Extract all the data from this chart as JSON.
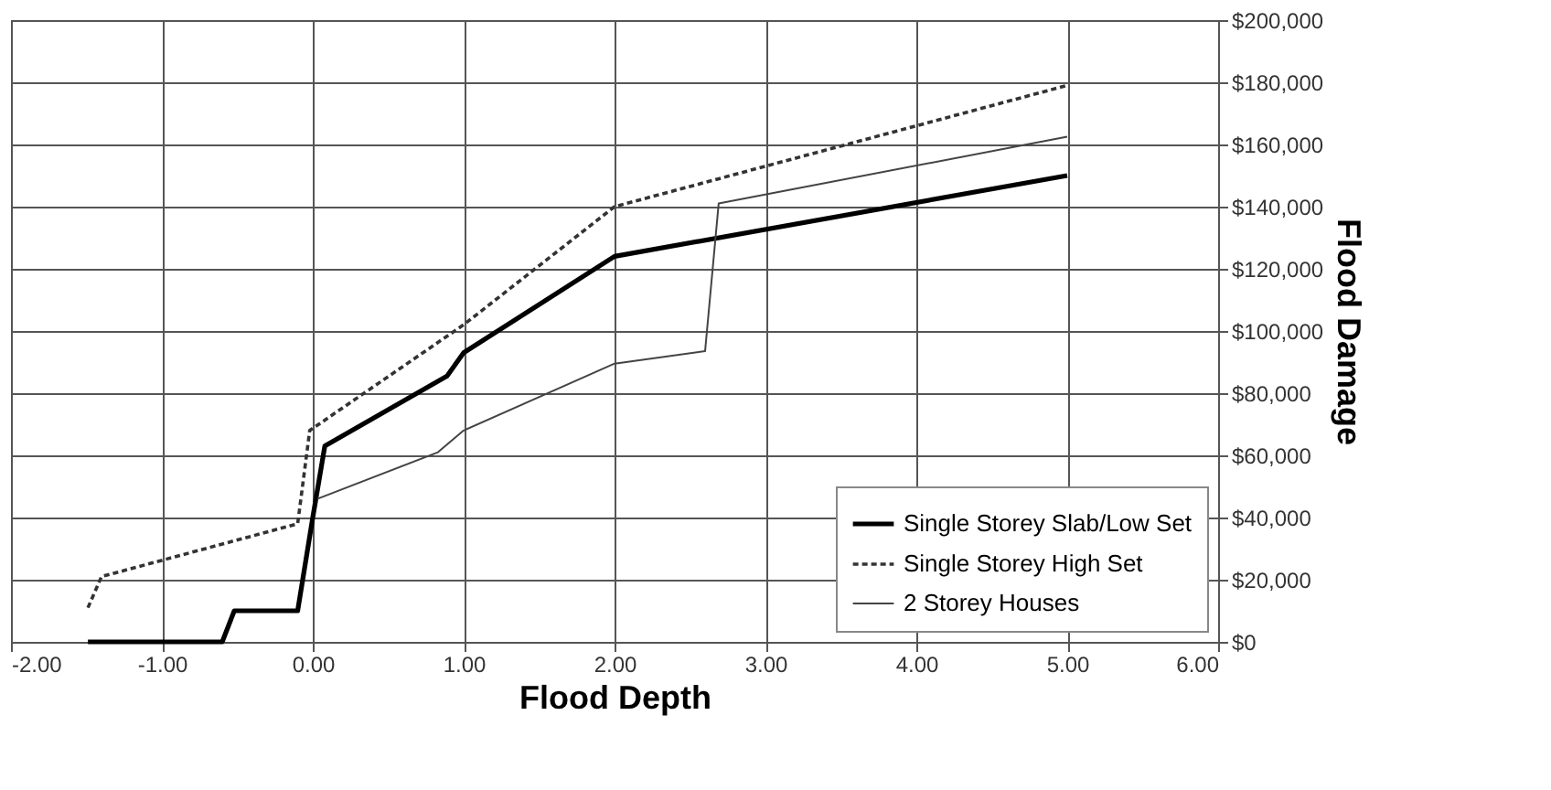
{
  "chart_data": {
    "type": "line",
    "xlabel": "Flood Depth",
    "ylabel": "Flood Damage",
    "xlim": [
      -2,
      6
    ],
    "ylim": [
      0,
      200000
    ],
    "xticks": [
      {
        "value": -2,
        "label": "-2.00"
      },
      {
        "value": -1,
        "label": "-1.00"
      },
      {
        "value": 0,
        "label": "0.00"
      },
      {
        "value": 1,
        "label": "1.00"
      },
      {
        "value": 2,
        "label": "2.00"
      },
      {
        "value": 3,
        "label": "3.00"
      },
      {
        "value": 4,
        "label": "4.00"
      },
      {
        "value": 5,
        "label": "5.00"
      },
      {
        "value": 6,
        "label": "6.00"
      }
    ],
    "yticks": [
      {
        "value": 0,
        "label": "$0"
      },
      {
        "value": 20000,
        "label": "$20,000"
      },
      {
        "value": 40000,
        "label": "$40,000"
      },
      {
        "value": 60000,
        "label": "$60,000"
      },
      {
        "value": 80000,
        "label": "$80,000"
      },
      {
        "value": 100000,
        "label": "$100,000"
      },
      {
        "value": 120000,
        "label": "$120,000"
      },
      {
        "value": 140000,
        "label": "$140,000"
      },
      {
        "value": 160000,
        "label": "$160,000"
      },
      {
        "value": 180000,
        "label": "$180,000"
      },
      {
        "value": 200000,
        "label": "$200,000"
      }
    ],
    "grid": true,
    "legend": "bottom right",
    "marker": "none",
    "series": [
      {
        "name": "Single Storey Slab/Low Set",
        "color": "#000000",
        "line_style": "solid",
        "x": [
          -1.49,
          -0.6,
          -0.52,
          -0.1,
          0.0,
          0.08,
          0.89,
          1.0,
          2.0,
          5.0
        ],
        "values": [
          0,
          0,
          10000,
          10000,
          40000,
          63000,
          85500,
          93000,
          124000,
          150000
        ]
      },
      {
        "name": "Single Storey High Set",
        "color": "#333333",
        "line_style": "dashed",
        "x": [
          -1.49,
          -1.4,
          -0.1,
          -0.02,
          1.0,
          2.0,
          5.0
        ],
        "values": [
          11000,
          21000,
          38000,
          68000,
          102000,
          140000,
          179000
        ]
      },
      {
        "name": "2 Storey Houses",
        "color": "#444444",
        "line_style": "solid",
        "x": [
          0.03,
          0.83,
          1.0,
          2.0,
          2.6,
          2.69,
          5.0
        ],
        "values": [
          46000,
          61000,
          68000,
          89500,
          93500,
          141000,
          162500
        ]
      }
    ]
  }
}
